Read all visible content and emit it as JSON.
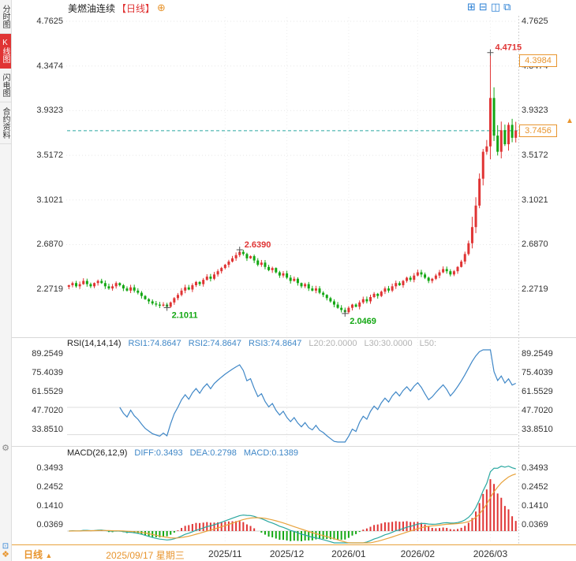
{
  "sidebar": {
    "items": [
      {
        "label": "分时图"
      },
      {
        "label": "K线图",
        "active": true
      },
      {
        "label": "闪电图"
      },
      {
        "label": "合约资料"
      }
    ]
  },
  "icons": {
    "gear": "⚙",
    "diamond": "❖",
    "square": "⊡",
    "arrow_up": "▲"
  },
  "header": {
    "title": "美燃油连续",
    "period_tag": "【日线】",
    "plus_icon": "⊕",
    "icons": [
      {
        "name": "layout-grid",
        "glyph": "⊞"
      },
      {
        "name": "layout-split",
        "glyph": "⊟"
      },
      {
        "name": "layout-dual",
        "glyph": "◫"
      },
      {
        "name": "layout-window",
        "glyph": "⧉"
      }
    ]
  },
  "price_panel": {
    "axis": [
      "4.7625",
      "4.3474",
      "3.9323",
      "3.5172",
      "3.1021",
      "2.6870",
      "2.2719"
    ],
    "current_price": "3.7456",
    "ref_price": "4.3984"
  },
  "rsi_panel": {
    "title": "RSI(14,14,14)",
    "rsi1": "RSI1:74.8647",
    "rsi2": "RSI2:74.8647",
    "rsi3": "RSI3:74.8647",
    "l20": "L20:20.0000",
    "l30": "L30:30.0000",
    "l50": "L50:",
    "axis": [
      "89.2549",
      "75.4039",
      "61.5529",
      "47.7020",
      "33.8510"
    ]
  },
  "macd_panel": {
    "title": "MACD(26,12,9)",
    "diff": "DIFF:0.3493",
    "dea": "DEA:0.2798",
    "macd": "MACD:0.1389",
    "axis": [
      "0.3493",
      "0.2452",
      "0.1410",
      "0.0369"
    ]
  },
  "bottom_bar": {
    "period": "日线",
    "arrow": "▲",
    "dates": [
      {
        "label": "2025/09/17 星期三",
        "bar": 21,
        "highlight": true
      },
      {
        "label": "2025/11",
        "bar": 43
      },
      {
        "label": "2025/12",
        "bar": 60
      },
      {
        "label": "2026/01",
        "bar": 77
      },
      {
        "label": "2026/02",
        "bar": 96
      },
      {
        "label": "2026/03",
        "bar": 116
      }
    ]
  },
  "colors": {
    "up": "#e03434",
    "down": "#13a713",
    "accent_orange": "#e8952e",
    "blue": "#3f87c7",
    "teal": "#2aa7a0",
    "dea_orange": "#e8a33d"
  },
  "chart_data": {
    "type": "candlestick",
    "title": "美燃油连续【日线】",
    "x_range": [
      "2025/09/17",
      "2026/03"
    ],
    "ylim": [
      2.0,
      4.7625
    ],
    "price_axis_values": [
      4.7625,
      4.3474,
      3.9323,
      3.5172,
      3.1021,
      2.687,
      2.2719
    ],
    "closes": [
      2.31,
      2.33,
      2.3,
      2.32,
      2.35,
      2.32,
      2.3,
      2.33,
      2.35,
      2.33,
      2.3,
      2.28,
      2.3,
      2.33,
      2.31,
      2.28,
      2.26,
      2.29,
      2.26,
      2.24,
      2.21,
      2.18,
      2.16,
      2.14,
      2.13,
      2.12,
      2.13,
      2.11,
      2.15,
      2.19,
      2.22,
      2.26,
      2.29,
      2.27,
      2.31,
      2.34,
      2.32,
      2.36,
      2.39,
      2.37,
      2.41,
      2.44,
      2.47,
      2.5,
      2.53,
      2.56,
      2.59,
      2.62,
      2.6,
      2.56,
      2.58,
      2.54,
      2.5,
      2.52,
      2.48,
      2.45,
      2.47,
      2.43,
      2.4,
      2.42,
      2.38,
      2.35,
      2.37,
      2.33,
      2.3,
      2.32,
      2.28,
      2.26,
      2.28,
      2.24,
      2.22,
      2.19,
      2.16,
      2.13,
      2.1,
      2.08,
      2.06,
      2.1,
      2.13,
      2.11,
      2.15,
      2.18,
      2.16,
      2.2,
      2.23,
      2.21,
      2.25,
      2.28,
      2.26,
      2.3,
      2.33,
      2.31,
      2.35,
      2.38,
      2.36,
      2.4,
      2.43,
      2.41,
      2.38,
      2.35,
      2.37,
      2.4,
      2.43,
      2.46,
      2.44,
      2.41,
      2.44,
      2.48,
      2.53,
      2.6,
      2.7,
      2.85,
      3.05,
      3.3,
      3.55,
      3.6,
      4.05,
      3.7,
      3.55,
      3.75,
      3.62,
      3.8,
      3.68,
      3.7456
    ],
    "overrides": {
      "27": {
        "low": 2.1011
      },
      "47": {
        "high": 2.639
      },
      "76": {
        "low": 2.0469
      },
      "116": {
        "high": 4.4715,
        "low": 3.48
      }
    },
    "annotations": [
      {
        "bar": 27,
        "price": 2.1011,
        "label": "2.1011",
        "side": "below",
        "color": "#13a713"
      },
      {
        "bar": 47,
        "price": 2.639,
        "label": "2.6390",
        "side": "above",
        "color": "#e03434"
      },
      {
        "bar": 76,
        "price": 2.0469,
        "label": "2.0469",
        "side": "below",
        "color": "#13a713"
      },
      {
        "bar": 116,
        "price": 4.4715,
        "label": "4.4715",
        "side": "above",
        "color": "#e03434"
      }
    ],
    "current_price": 3.7456,
    "ref_price": 4.3984,
    "indicators": {
      "rsi": {
        "params": [
          14,
          14,
          14
        ],
        "readout": {
          "rsi1": 74.8647,
          "rsi2": 74.8647,
          "rsi3": 74.8647
        },
        "ref_levels": [
          20,
          30,
          50
        ],
        "axis_values": [
          89.2549,
          75.4039,
          61.5529,
          47.702,
          33.851
        ]
      },
      "macd": {
        "params": [
          26,
          12,
          9
        ],
        "readout": {
          "diff": 0.3493,
          "dea": 0.2798,
          "macd": 0.1389
        },
        "axis_values": [
          0.3493,
          0.2452,
          0.141,
          0.0369
        ]
      }
    }
  }
}
